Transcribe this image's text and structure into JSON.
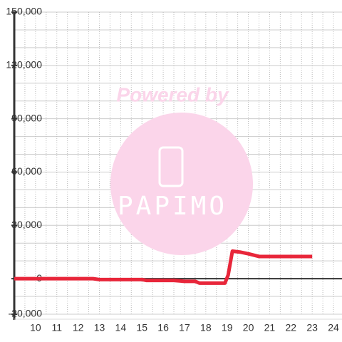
{
  "chart_data": {
    "type": "line",
    "watermark": {
      "line1": "Powered by",
      "line2": "PAPIMO"
    },
    "x": [
      9,
      10,
      11,
      12,
      12.7,
      13,
      14,
      15,
      15.2,
      16,
      16.5,
      17,
      17.5,
      17.7,
      18,
      18.5,
      18.9,
      19.05,
      19.25,
      19.6,
      20,
      20.5,
      21,
      22,
      23
    ],
    "series": [
      {
        "color": "#e8263a",
        "values": [
          0,
          0,
          0,
          0,
          0,
          -500,
          -500,
          -500,
          -1000,
          -1000,
          -1000,
          -1500,
          -1500,
          -2500,
          -2500,
          -2500,
          -2500,
          2000,
          15500,
          15000,
          14000,
          12500,
          12500,
          12500,
          12500
        ]
      }
    ],
    "xlim": [
      9,
      24.4
    ],
    "xticks": [
      10,
      11,
      12,
      13,
      14,
      15,
      16,
      17,
      18,
      19,
      20,
      21,
      22,
      23,
      24
    ],
    "xminorticks": [
      9.5,
      10.5,
      11.5,
      12.5,
      13.5,
      14.5,
      15.5,
      16.5,
      17.5,
      18.5,
      19.5,
      20.5,
      21.5,
      22.5,
      23.5
    ],
    "ylim": [
      -20000,
      150000
    ],
    "yticks": [
      {
        "value": -20000,
        "label": "-20,000"
      },
      0,
      {
        "value": 30000,
        "label": "30,000"
      },
      {
        "value": 60000,
        "label": "60,000"
      },
      {
        "value": 90000,
        "label": "90,000"
      },
      {
        "value": 120000,
        "label": "120,000"
      },
      {
        "value": 150000,
        "label": "150,000"
      }
    ],
    "yminorticks": [
      -10000,
      10000,
      20000,
      40000,
      50000,
      70000,
      80000,
      100000,
      110000,
      130000,
      140000
    ],
    "grid": true
  }
}
